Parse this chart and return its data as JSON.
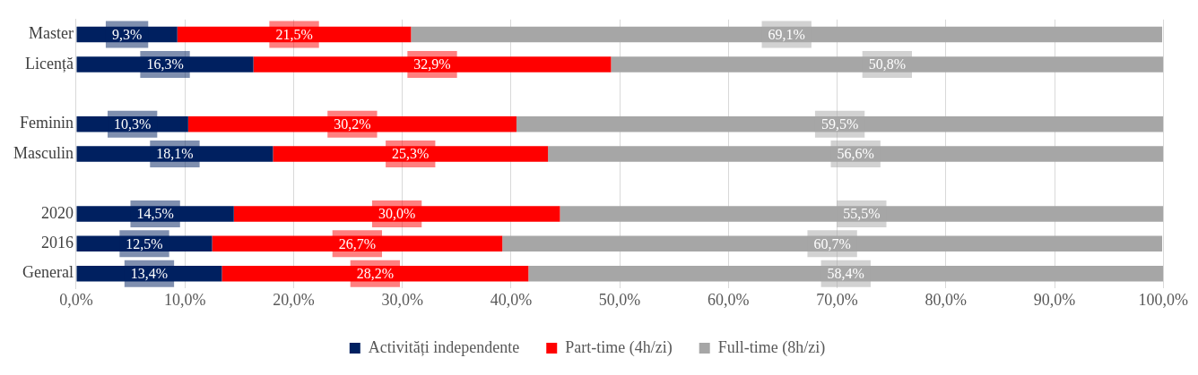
{
  "chart_data": {
    "type": "bar",
    "orientation": "horizontal",
    "stacked": true,
    "categories": [
      "Master",
      "Licență",
      null,
      "Feminin",
      "Masculin",
      null,
      "2020",
      "2016",
      "General"
    ],
    "series": [
      {
        "name": "Activități independente",
        "color": "#002060",
        "values": [
          9.3,
          16.3,
          null,
          10.3,
          18.1,
          null,
          14.5,
          12.5,
          13.4
        ],
        "value_labels": [
          "9,3%",
          "16,3%",
          null,
          "10,3%",
          "18,1%",
          null,
          "14,5%",
          "12,5%",
          "13,4%"
        ]
      },
      {
        "name": "Part-time (4h/zi)",
        "color": "#ff0000",
        "values": [
          21.5,
          32.9,
          null,
          30.2,
          25.3,
          null,
          30.0,
          26.7,
          28.2
        ],
        "value_labels": [
          "21,5%",
          "32,9%",
          null,
          "30,2%",
          "25,3%",
          null,
          "30,0%",
          "26,7%",
          "28,2%"
        ]
      },
      {
        "name": "Full-time (8h/zi)",
        "color": "#a6a6a6",
        "values": [
          69.1,
          50.8,
          null,
          59.5,
          56.6,
          null,
          55.5,
          60.7,
          58.4
        ],
        "value_labels": [
          "69,1%",
          "50,8%",
          null,
          "59,5%",
          "56,6%",
          null,
          "55,5%",
          "60,7%",
          "58,4%"
        ]
      }
    ],
    "xlim": [
      0,
      100
    ],
    "xticks": [
      {
        "value": 0,
        "label": "0,0%"
      },
      {
        "value": 10,
        "label": "10,0%"
      },
      {
        "value": 20,
        "label": "20,0%"
      },
      {
        "value": 30,
        "label": "30,0%"
      },
      {
        "value": 40,
        "label": "40,0%"
      },
      {
        "value": 50,
        "label": "50,0%"
      },
      {
        "value": 60,
        "label": "60,0%"
      },
      {
        "value": 70,
        "label": "70,0%"
      },
      {
        "value": 80,
        "label": "80,0%"
      },
      {
        "value": 90,
        "label": "90,0%"
      },
      {
        "value": 100,
        "label": "100,0%"
      }
    ],
    "grid": "x",
    "legend": "bottom"
  }
}
